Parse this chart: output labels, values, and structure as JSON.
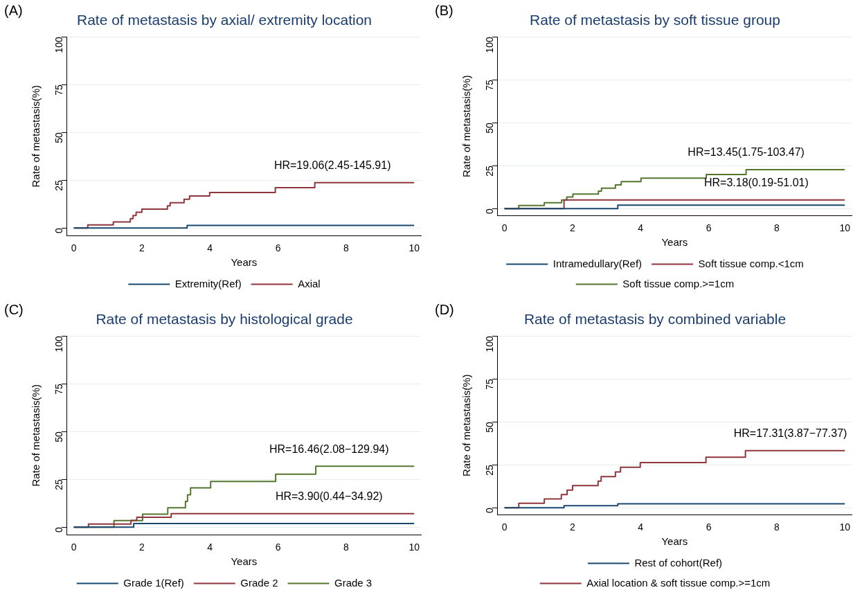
{
  "chart_data": [
    {
      "type": "step",
      "title": "Rate of metastasis by axial/ extremity location",
      "xlabel": "Years",
      "ylabel": "Rate of metastasis(%)",
      "xlim": [
        -0.2,
        10.2
      ],
      "xticks": [
        0,
        2,
        4,
        6,
        8,
        10
      ],
      "ylim": [
        -4,
        100
      ],
      "yticks": [
        0,
        25,
        50,
        75,
        100
      ],
      "grid": "y",
      "legend": "bottom",
      "annotations": [
        "(A)",
        {
          "text": "HR=19.06(2.45-145.91)",
          "x": 7.6,
          "y": 23.7
        }
      ],
      "series": [
        {
          "name": "Extremity(Ref)",
          "color": "#1a476f",
          "x": [
            0,
            3.33,
            10
          ],
          "values": [
            0,
            1.3,
            1.3
          ]
        },
        {
          "name": "Axial",
          "color": "#90353b",
          "x": [
            0,
            0.41,
            1.16,
            1.66,
            1.74,
            1.83,
            2.0,
            2.75,
            2.83,
            3.24,
            3.4,
            3.99,
            5.92,
            7.08,
            10
          ],
          "values": [
            0,
            1.6,
            3.1,
            4.9,
            6.5,
            8.2,
            9.8,
            11.6,
            13.2,
            15.0,
            16.7,
            18.5,
            21.1,
            23.7,
            23.7
          ]
        }
      ]
    },
    {
      "type": "step",
      "title": "Rate of metastasis by soft tissue group",
      "xlabel": "Years",
      "ylabel": "Rate of metastasis(%)",
      "xlim": [
        -0.2,
        10.2
      ],
      "xticks": [
        0,
        2,
        4,
        6,
        8,
        10
      ],
      "ylim": [
        -4,
        100
      ],
      "yticks": [
        0,
        25,
        50,
        75,
        100
      ],
      "grid": "y",
      "legend": "bottom",
      "annotations": [
        "(B)",
        {
          "text": "HR=13.45(1.75-103.47)",
          "x": 7.1,
          "y": 22.7
        },
        {
          "text": "HR=3.18(0.19-51.01)",
          "x": 7.4,
          "y": 5.0
        }
      ],
      "series": [
        {
          "name": "Intramedullary(Ref)",
          "color": "#1a476f",
          "x": [
            0,
            3.33,
            10
          ],
          "values": [
            0,
            2.0,
            2.0
          ]
        },
        {
          "name": "Soft tissue comp.<1cm",
          "color": "#90353b",
          "x": [
            0,
            1.75,
            10
          ],
          "values": [
            0,
            5.0,
            5.0
          ]
        },
        {
          "name": "Soft tissue comp.>=1cm",
          "color": "#55752f",
          "x": [
            0,
            0.42,
            1.17,
            1.68,
            1.83,
            2.01,
            2.76,
            2.85,
            3.26,
            3.43,
            4.01,
            5.93,
            7.1,
            10
          ],
          "values": [
            0,
            1.8,
            3.4,
            5.1,
            6.8,
            8.5,
            10.2,
            11.9,
            13.8,
            15.7,
            17.7,
            19.9,
            22.7,
            22.7
          ]
        }
      ]
    },
    {
      "type": "step",
      "title": "Rate of metastasis by histological grade",
      "xlabel": "Years",
      "ylabel": "Rate of metastasis(%)",
      "xlim": [
        -0.2,
        10.2
      ],
      "xticks": [
        0,
        2,
        4,
        6,
        8,
        10
      ],
      "ylim": [
        -4,
        100
      ],
      "yticks": [
        0,
        25,
        50,
        75,
        100
      ],
      "grid": "y",
      "legend": "bottom",
      "annotations": [
        "(C)",
        {
          "text": "HR=16.46(2.08−129.94)",
          "x": 7.5,
          "y": 31.9
        },
        {
          "text": "HR=3.90(0.44−34.92)",
          "x": 7.5,
          "y": 7.0
        }
      ],
      "series": [
        {
          "name": "Grade 1(Ref)",
          "color": "#1a476f",
          "x": [
            0,
            1.76,
            10
          ],
          "values": [
            0,
            1.9,
            1.9
          ]
        },
        {
          "name": "Grade 2",
          "color": "#90353b",
          "x": [
            0,
            0.43,
            1.68,
            1.85,
            2.86,
            10
          ],
          "values": [
            0,
            1.6,
            3.5,
            5.1,
            7.0,
            7.0
          ]
        },
        {
          "name": "Grade 3",
          "color": "#55752f",
          "x": [
            0,
            1.18,
            2.02,
            2.76,
            3.28,
            3.34,
            3.43,
            4.02,
            5.93,
            7.11,
            10
          ],
          "values": [
            0,
            3.4,
            6.8,
            10.1,
            13.5,
            16.9,
            20.5,
            23.9,
            27.7,
            31.9,
            31.9
          ]
        }
      ]
    },
    {
      "type": "step",
      "title": "Rate of metastasis by combined variable",
      "xlabel": "Years",
      "ylabel": "Rate of metastasis(%)",
      "xlim": [
        -0.2,
        10.2
      ],
      "xticks": [
        0,
        2,
        4,
        6,
        8,
        10
      ],
      "ylim": [
        -4,
        100
      ],
      "yticks": [
        0,
        25,
        50,
        75,
        100
      ],
      "grid": "y",
      "legend": "bottom",
      "annotations": [
        "(D)",
        {
          "text": "HR=17.31(3.87−77.37)",
          "x": 8.4,
          "y": 33.3
        }
      ],
      "series": [
        {
          "name": "Rest of cohort(Ref)",
          "color": "#1a476f",
          "x": [
            0,
            1.75,
            3.33,
            10
          ],
          "values": [
            0,
            1.2,
            2.3,
            2.3
          ]
        },
        {
          "name": "Axial location & soft tissue comp.>=1cm",
          "color": "#90353b",
          "x": [
            0,
            0.42,
            1.17,
            1.67,
            1.84,
            2.0,
            2.75,
            2.84,
            3.26,
            3.41,
            3.99,
            5.92,
            7.08,
            10
          ],
          "values": [
            0,
            2.6,
            5.2,
            7.7,
            10.3,
            12.9,
            15.5,
            18.2,
            20.9,
            23.6,
            26.3,
            29.4,
            33.3,
            33.3
          ]
        }
      ]
    }
  ]
}
